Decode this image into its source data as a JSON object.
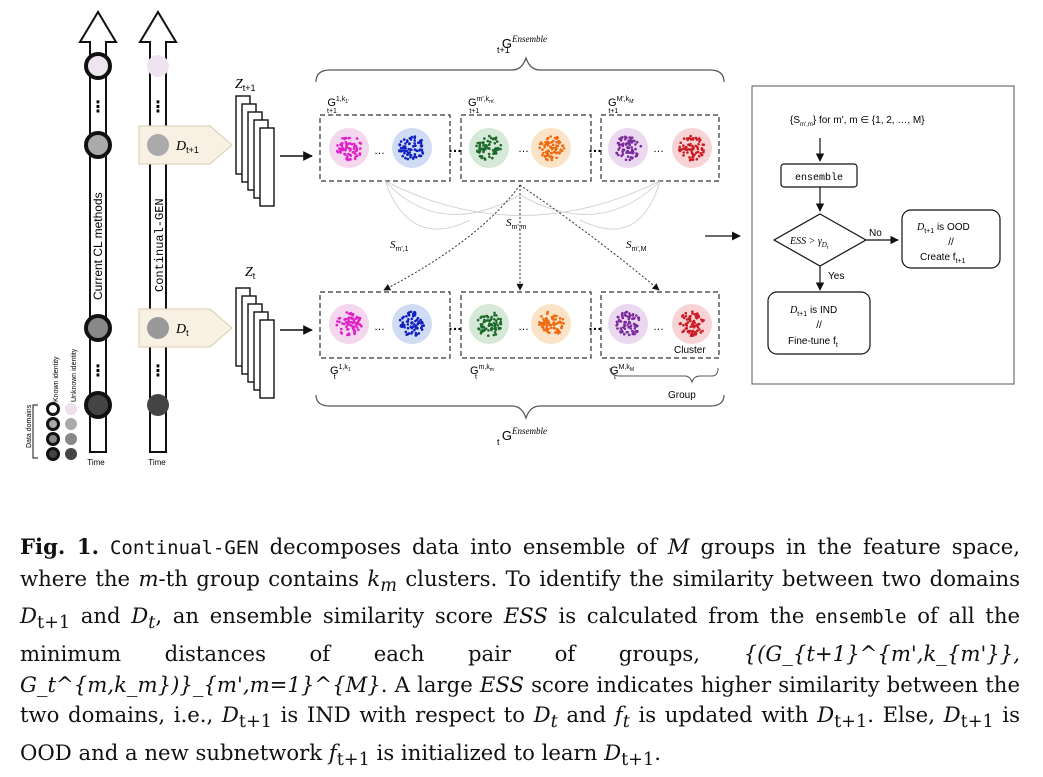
{
  "left_axes": {
    "current_label": "Current CL methods",
    "continual_label": "Continual-GEN",
    "time_label": "Time",
    "legend": {
      "data_domains": "Data domains",
      "known_identity": "Known identity",
      "unknown_identity": "Unknown identity"
    }
  },
  "domains": {
    "next": "D",
    "next_sub": "t+1",
    "cur": "D",
    "cur_sub": "t"
  },
  "features": {
    "next": "Z",
    "next_sub": "t+1",
    "cur": "Z",
    "cur_sub": "t"
  },
  "ensemble": {
    "top_label": "G",
    "top_sup": "Ensemble",
    "top_sub": "t+1",
    "bottom_label": "G",
    "bottom_sup": "Ensemble",
    "bottom_sub": "t",
    "top_groups": [
      {
        "label": "G",
        "sup": "1,k",
        "sup_sub": "1'",
        "sub": "t+1"
      },
      {
        "label": "G",
        "sup": "m',k",
        "sup_sub": "m'",
        "sub": "t+1"
      },
      {
        "label": "G",
        "sup": "M',k",
        "sup_sub": "M'",
        "sub": "t+1"
      }
    ],
    "bottom_groups": [
      {
        "label": "G",
        "sup": "1,k",
        "sup_sub": "1",
        "sub": "t"
      },
      {
        "label": "G",
        "sup": "m,k",
        "sup_sub": "m",
        "sub": "t"
      },
      {
        "label": "G",
        "sup": "M,k",
        "sup_sub": "M",
        "sub": "t"
      }
    ],
    "similarity_labels": [
      {
        "s": "S",
        "sub": "m',1"
      },
      {
        "s": "S",
        "sub": "m',m"
      },
      {
        "s": "S",
        "sub": "m',M"
      }
    ],
    "cluster_label": "Cluster",
    "group_label": "Group",
    "cluster_colors": [
      "#e020c8",
      "#1020c0",
      "#1a6a2a",
      "#ee6a10",
      "#7a2a9a",
      "#cc1a22"
    ],
    "halo_colors": [
      "#f4d6ef",
      "#cfdcf3",
      "#d6e8d8",
      "#fbe3c8",
      "#ead7f0",
      "#f6d3d4"
    ]
  },
  "flowchart": {
    "input_text": "{S",
    "input_sub": "m',m",
    "input_tail": "} for m', m ∈ {1, 2, …, M}",
    "ensemble_box": "ensemble",
    "decision": "ESS > γ",
    "decision_sub": "D",
    "decision_subsub": "r",
    "no_label": "No",
    "yes_label": "Yes",
    "ood_line1_d": "D",
    "ood_line1_sub": "t+1",
    "ood_line1_rest": " is OOD",
    "ood_line2": "//",
    "ood_line3": "Create f",
    "ood_line3_sub": "t+1",
    "ind_line1_d": "D",
    "ind_line1_sub": "t+1",
    "ind_line1_rest": " is IND",
    "ind_line2": "//",
    "ind_line3": "Fine-tune f",
    "ind_line3_sub": "t"
  },
  "caption": {
    "label": "Fig. 1.",
    "method": "Continual-GEN",
    "t1": " decomposes data into ensemble of ",
    "M": "M",
    "t2": " groups in the feature space, where the ",
    "m": "m",
    "t3": "-th group contains ",
    "km": "k",
    "km_sub": "m",
    "t4": " clusters. To identify the similarity between two domains ",
    "D1": "D",
    "D1_sub": "t+1",
    "t5": " and ",
    "D2": "D",
    "D2_sub": "t",
    "t6": ", an ensemble similarity score ",
    "ESS": "ESS",
    "t7": " is calculated from the ",
    "ens": "ensemble",
    "t8": " of all the minimum distances of each pair of groups, ",
    "formula": "{(G_{t+1}^{m',k_{m'}}, G_t^{m,k_m})}_{m',m=1}^{M}",
    "t9": ". A large ",
    "ESS2": "ESS",
    "t10": " score indicates higher similarity between the two domains, i.e., ",
    "D3": "D",
    "D3_sub": "t+1",
    "t11": " is IND with respect to ",
    "D4": "D",
    "D4_sub": "t",
    "t12": " and ",
    "ft": "f",
    "ft_sub": "t",
    "t13": " is updated with ",
    "D5": "D",
    "D5_sub": "t+1",
    "t14": ". Else, ",
    "D6": "D",
    "D6_sub": "t+1",
    "t15": " is OOD and a new subnetwork ",
    "f2": "f",
    "f2_sub": "t+1",
    "t16": " is initialized to learn ",
    "D7": "D",
    "D7_sub": "t+1",
    "t17": "."
  }
}
